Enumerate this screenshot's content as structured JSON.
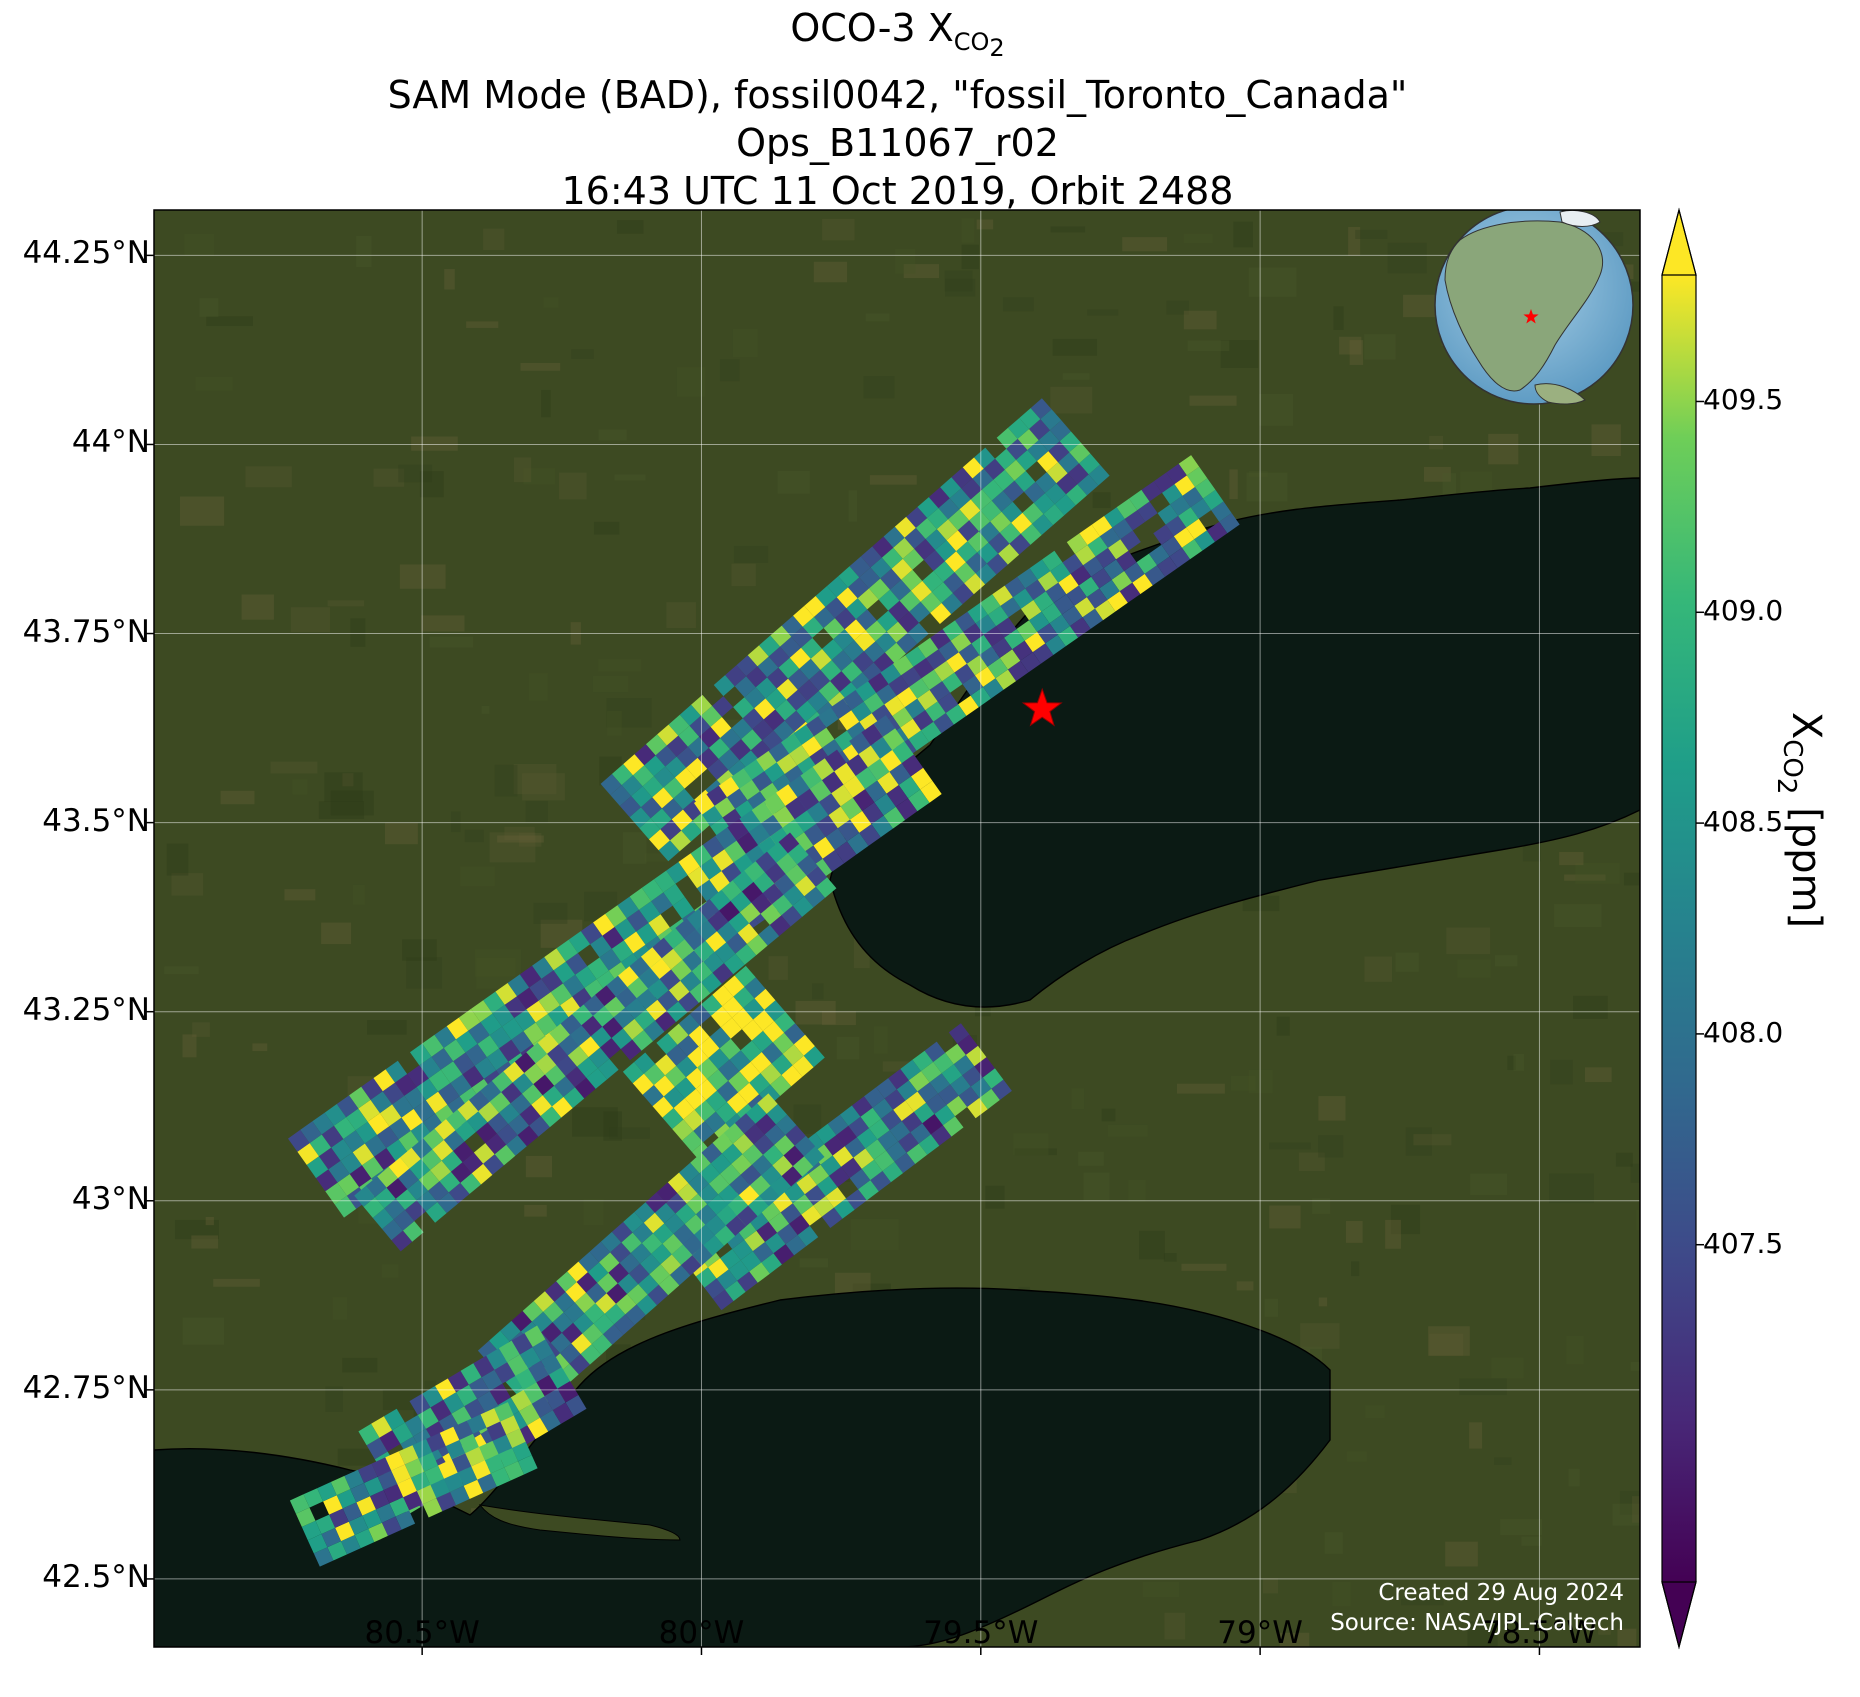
{
  "title": {
    "line1_prefix": "OCO-3 X",
    "line1_sub": "CO",
    "line1_sub2": "2",
    "line2": "SAM Mode (BAD), fossil0042, \"fossil_Toronto_Canada\"",
    "line3": "Ops_B11067_r02",
    "line4": "16:43 UTC 11 Oct 2019, Orbit 2488"
  },
  "map": {
    "lon_range": [
      -80.98,
      -78.32
    ],
    "lat_range": [
      42.41,
      44.31
    ],
    "lat_ticks": [
      {
        "value": 44.25,
        "label": "44.25°N"
      },
      {
        "value": 44.0,
        "label": "44°N"
      },
      {
        "value": 43.75,
        "label": "43.75°N"
      },
      {
        "value": 43.5,
        "label": "43.5°N"
      },
      {
        "value": 43.25,
        "label": "43.25°N"
      },
      {
        "value": 43.0,
        "label": "43°N"
      },
      {
        "value": 42.75,
        "label": "42.75°N"
      },
      {
        "value": 42.5,
        "label": "42.5°N"
      }
    ],
    "lon_ticks": [
      {
        "value": -80.5,
        "label": "80.5°W"
      },
      {
        "value": -80.0,
        "label": "80°W"
      },
      {
        "value": -79.5,
        "label": "79.5°W"
      },
      {
        "value": -79.0,
        "label": "79°W"
      },
      {
        "value": -78.5,
        "label": "78.5°W"
      }
    ],
    "target": {
      "name": "fossil_Toronto_Canada",
      "lon": -79.39,
      "lat": 43.65,
      "color": "#ff0000"
    },
    "land_color": "#3d4a22",
    "water_color": "#0b1a14",
    "grid": true
  },
  "colorbar": {
    "label_prefix": "X",
    "label_sub": "CO",
    "label_sub2": "2",
    "label_suffix": " [ppm]",
    "min": 406.7,
    "max": 409.8,
    "extend": "both",
    "ticks": [
      {
        "value": 407.5,
        "label": "407.5"
      },
      {
        "value": 408.0,
        "label": "408.0"
      },
      {
        "value": 408.5,
        "label": "408.5"
      },
      {
        "value": 409.0,
        "label": "409.0"
      },
      {
        "value": 409.5,
        "label": "409.5"
      }
    ],
    "colormap": "viridis"
  },
  "chart_data": {
    "type": "heatmap",
    "title": "OCO-3 XCO2 SAM Mode (BAD), fossil0042, \"fossil_Toronto_Canada\" Ops_B11067_r02 16:43 UTC 11 Oct 2019, Orbit 2488",
    "units": "ppm",
    "value_range": [
      406.7,
      409.8
    ],
    "swaths": [
      {
        "start": [
          -79.33,
          44.01
        ],
        "end": [
          -80.12,
          43.5
        ],
        "width_deg": 0.085,
        "mean": 408.6
      },
      {
        "start": [
          -79.08,
          43.94
        ],
        "end": [
          -79.97,
          43.48
        ],
        "width_deg": 0.07,
        "mean": 408.6
      },
      {
        "start": [
          -79.62,
          43.59
        ],
        "end": [
          -80.69,
          43.03
        ],
        "width_deg": 0.08,
        "mean": 408.5
      },
      {
        "start": [
          -79.8,
          43.45
        ],
        "end": [
          -80.58,
          42.97
        ],
        "width_deg": 0.06,
        "mean": 408.4
      },
      {
        "start": [
          -79.85,
          43.25
        ],
        "end": [
          -80.07,
          43.11
        ],
        "width_deg": 0.1,
        "mean": 409.2
      },
      {
        "start": [
          -79.49,
          43.19
        ],
        "end": [
          -80.01,
          42.9
        ],
        "width_deg": 0.07,
        "mean": 408.3
      },
      {
        "start": [
          -79.83,
          43.1
        ],
        "end": [
          -80.35,
          42.76
        ],
        "width_deg": 0.07,
        "mean": 408.4
      },
      {
        "start": [
          -80.25,
          42.78
        ],
        "end": [
          -80.57,
          42.64
        ],
        "width_deg": 0.08,
        "mean": 408.4
      },
      {
        "start": [
          -80.32,
          42.69
        ],
        "end": [
          -80.71,
          42.56
        ],
        "width_deg": 0.06,
        "mean": 408.5
      }
    ]
  },
  "inset": {
    "name": "globe inset",
    "star_color": "#ff0000"
  },
  "credits": {
    "line1": "Created 29 Aug 2024",
    "line2": "Source: NASA/JPL-Caltech"
  }
}
